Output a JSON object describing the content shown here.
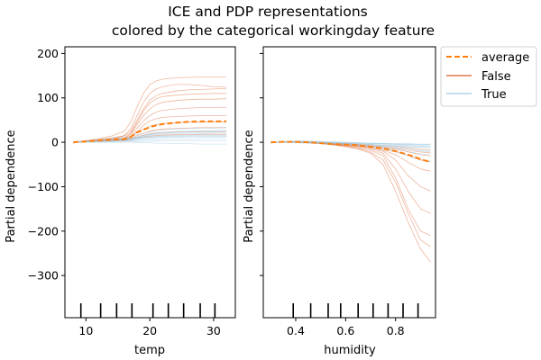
{
  "chart_data": {
    "type": "line",
    "title_line1": "ICE and PDP representations",
    "title_line2": "colored by the categorical workingday feature",
    "ylabel": "Partial dependence",
    "ylim": [
      -395,
      215
    ],
    "yticks": [
      200,
      100,
      0,
      -100,
      -200,
      -300
    ],
    "ytick_labels": [
      "200",
      "100",
      "0",
      "−100",
      "−200",
      "−300"
    ],
    "colors": {
      "average": "#ff7f0e",
      "false": "#d95f2a",
      "true": "#9ecae1"
    },
    "legend": {
      "position": "outside-right",
      "average": "average",
      "false_label": "False",
      "true_label": "True"
    },
    "panels": [
      {
        "xlabel": "temp",
        "xlim": [
          6.7,
          33.4
        ],
        "xticks": [
          10,
          20,
          30
        ],
        "xtick_labels": [
          "10",
          "20",
          "30"
        ],
        "deciles": [
          9.2,
          12.3,
          14.8,
          17.2,
          20.5,
          22.9,
          25.3,
          27.9,
          30.2
        ],
        "x": [
          8,
          10,
          12,
          14,
          16,
          17,
          18,
          19,
          20,
          21,
          22,
          24,
          26,
          28,
          30,
          32
        ],
        "average": [
          0,
          2,
          4,
          6,
          7,
          12,
          22,
          28,
          34,
          38,
          41,
          44,
          46,
          47,
          47,
          47
        ],
        "ice": [
          {
            "group": "false",
            "values": [
              0,
              3,
              6,
              9,
              14,
              24,
              50,
              75,
              95,
              105,
              110,
              115,
              118,
              119,
              120,
              121
            ]
          },
          {
            "group": "false",
            "values": [
              0,
              3,
              5,
              8,
              10,
              20,
              45,
              70,
              88,
              98,
              103,
              106,
              108,
              109,
              110,
              110
            ]
          },
          {
            "group": "false",
            "values": [
              0,
              2,
              4,
              6,
              8,
              18,
              40,
              60,
              75,
              85,
              90,
              94,
              96,
              97,
              97,
              98
            ]
          },
          {
            "group": "false",
            "values": [
              0,
              2,
              4,
              5,
              7,
              14,
              32,
              48,
              60,
              68,
              72,
              75,
              77,
              78,
              78,
              79
            ]
          },
          {
            "group": "false",
            "values": [
              0,
              2,
              3,
              5,
              7,
              10,
              25,
              38,
              48,
              53,
              56,
              58,
              59,
              60,
              60,
              60
            ]
          },
          {
            "group": "false",
            "values": [
              0,
              3,
              6,
              9,
              15,
              30,
              60,
              90,
              110,
              120,
              125,
              130,
              130,
              128,
              125,
              124
            ]
          },
          {
            "group": "false",
            "values": [
              0,
              2,
              4,
              6,
              8,
              12,
              22,
              30,
              36,
              40,
              42,
              44,
              45,
              45,
              46,
              46
            ]
          },
          {
            "group": "false",
            "values": [
              0,
              1,
              2,
              4,
              5,
              8,
              15,
              20,
              25,
              28,
              30,
              31,
              32,
              33,
              33,
              33
            ]
          },
          {
            "group": "false",
            "values": [
              0,
              1,
              2,
              3,
              4,
              5,
              9,
              12,
              14,
              15,
              16,
              17,
              17,
              18,
              18,
              18
            ]
          },
          {
            "group": "false",
            "values": [
              0,
              4,
              8,
              14,
              25,
              45,
              80,
              110,
              130,
              138,
              142,
              145,
              146,
              147,
              147,
              147
            ]
          },
          {
            "group": "false",
            "values": [
              0,
              2,
              3,
              4,
              5,
              7,
              12,
              16,
              19,
              21,
              22,
              23,
              23,
              24,
              24,
              24
            ]
          },
          {
            "group": "true",
            "values": [
              0,
              3,
              5,
              7,
              8,
              9,
              12,
              15,
              18,
              20,
              22,
              24,
              25,
              26,
              26,
              27
            ]
          },
          {
            "group": "true",
            "values": [
              0,
              2,
              4,
              6,
              7,
              8,
              10,
              13,
              15,
              17,
              18,
              19,
              20,
              20,
              21,
              21
            ]
          },
          {
            "group": "true",
            "values": [
              0,
              2,
              3,
              5,
              6,
              7,
              9,
              11,
              12,
              13,
              14,
              15,
              16,
              16,
              16,
              16
            ]
          },
          {
            "group": "true",
            "values": [
              0,
              1,
              2,
              3,
              4,
              5,
              6,
              8,
              9,
              10,
              11,
              11,
              12,
              12,
              12,
              12
            ]
          },
          {
            "group": "true",
            "values": [
              0,
              1,
              2,
              2,
              3,
              3,
              4,
              5,
              6,
              6,
              7,
              7,
              7,
              8,
              8,
              8
            ]
          },
          {
            "group": "true",
            "values": [
              0,
              1,
              1,
              1,
              2,
              2,
              2,
              2,
              3,
              3,
              3,
              3,
              3,
              3,
              3,
              3
            ]
          },
          {
            "group": "true",
            "values": [
              0,
              0,
              0,
              0,
              0,
              0,
              0,
              -1,
              -1,
              -2,
              -2,
              -3,
              -3,
              -4,
              -4,
              -4
            ]
          },
          {
            "group": "true",
            "values": [
              0,
              3,
              6,
              9,
              11,
              13,
              17,
              20,
              23,
              26,
              28,
              30,
              31,
              32,
              32,
              33
            ]
          },
          {
            "group": "true",
            "values": [
              0,
              2,
              4,
              6,
              8,
              9,
              12,
              15,
              17,
              19,
              20,
              22,
              23,
              23,
              24,
              24
            ]
          },
          {
            "group": "true",
            "values": [
              0,
              1,
              3,
              4,
              5,
              6,
              8,
              9,
              11,
              12,
              13,
              13,
              14,
              14,
              14,
              14
            ]
          }
        ]
      },
      {
        "xlabel": "humidity",
        "xlim": [
          0.27,
          0.96
        ],
        "xticks": [
          0.4,
          0.6,
          0.8
        ],
        "xtick_labels": [
          "0.4",
          "0.6",
          "0.8"
        ],
        "deciles": [
          0.39,
          0.46,
          0.53,
          0.58,
          0.65,
          0.71,
          0.77,
          0.83,
          0.89
        ],
        "x": [
          0.3,
          0.35,
          0.4,
          0.45,
          0.5,
          0.55,
          0.6,
          0.65,
          0.7,
          0.75,
          0.8,
          0.85,
          0.9,
          0.94
        ],
        "average": [
          0,
          1,
          1,
          0,
          -2,
          -4,
          -5,
          -7,
          -10,
          -14,
          -20,
          -28,
          -38,
          -45
        ],
        "ice": [
          {
            "group": "false",
            "values": [
              0,
              1,
              1,
              0,
              -2,
              -5,
              -8,
              -12,
              -18,
              -30,
              -80,
              -150,
              -200,
              -210
            ]
          },
          {
            "group": "false",
            "values": [
              0,
              1,
              0,
              -1,
              -3,
              -6,
              -10,
              -15,
              -25,
              -50,
              -110,
              -180,
              -240,
              -270
            ]
          },
          {
            "group": "false",
            "values": [
              0,
              0,
              0,
              -1,
              -2,
              -4,
              -7,
              -10,
              -15,
              -25,
              -60,
              -110,
              -150,
              -160
            ]
          },
          {
            "group": "false",
            "values": [
              0,
              1,
              1,
              0,
              -1,
              -3,
              -5,
              -8,
              -12,
              -20,
              -40,
              -75,
              -100,
              -110
            ]
          },
          {
            "group": "false",
            "values": [
              0,
              1,
              1,
              0,
              -2,
              -4,
              -6,
              -9,
              -13,
              -18,
              -28,
              -45,
              -60,
              -65
            ]
          },
          {
            "group": "false",
            "values": [
              0,
              0,
              0,
              -1,
              -2,
              -3,
              -5,
              -7,
              -10,
              -14,
              -20,
              -30,
              -40,
              -44
            ]
          },
          {
            "group": "false",
            "values": [
              0,
              1,
              1,
              1,
              0,
              -2,
              -3,
              -5,
              -8,
              -11,
              -15,
              -22,
              -28,
              -31
            ]
          },
          {
            "group": "false",
            "values": [
              0,
              0,
              0,
              -1,
              -2,
              -3,
              -4,
              -6,
              -8,
              -10,
              -13,
              -18,
              -22,
              -24
            ]
          },
          {
            "group": "false",
            "values": [
              0,
              1,
              1,
              0,
              -1,
              -2,
              -3,
              -4,
              -5,
              -7,
              -9,
              -12,
              -15,
              -17
            ]
          },
          {
            "group": "false",
            "values": [
              0,
              1,
              1,
              0,
              -2,
              -5,
              -9,
              -14,
              -22,
              -40,
              -90,
              -160,
              -220,
              -235
            ]
          },
          {
            "group": "true",
            "values": [
              0,
              1,
              1,
              0,
              -1,
              -2,
              -3,
              -4,
              -5,
              -6,
              -7,
              -8,
              -9,
              -10
            ]
          },
          {
            "group": "true",
            "values": [
              0,
              2,
              3,
              3,
              2,
              1,
              0,
              -1,
              -2,
              -3,
              -4,
              -5,
              -6,
              -6
            ]
          },
          {
            "group": "true",
            "values": [
              0,
              0,
              0,
              -1,
              -2,
              -3,
              -4,
              -6,
              -8,
              -10,
              -12,
              -15,
              -18,
              -20
            ]
          },
          {
            "group": "true",
            "values": [
              0,
              1,
              2,
              2,
              1,
              0,
              -1,
              -2,
              -3,
              -4,
              -5,
              -7,
              -9,
              -10
            ]
          },
          {
            "group": "true",
            "values": [
              0,
              1,
              1,
              0,
              -1,
              -2,
              -4,
              -6,
              -9,
              -12,
              -16,
              -21,
              -26,
              -28
            ]
          },
          {
            "group": "true",
            "values": [
              0,
              0,
              0,
              0,
              -1,
              -1,
              -2,
              -2,
              -3,
              -3,
              -4,
              -4,
              -5,
              -5
            ]
          },
          {
            "group": "true",
            "values": [
              0,
              1,
              1,
              1,
              0,
              -1,
              -2,
              -3,
              -5,
              -7,
              -10,
              -14,
              -19,
              -22
            ]
          },
          {
            "group": "true",
            "values": [
              0,
              1,
              2,
              1,
              0,
              -2,
              -4,
              -7,
              -11,
              -16,
              -22,
              -30,
              -38,
              -42
            ]
          },
          {
            "group": "true",
            "values": [
              0,
              0,
              -1,
              -2,
              -3,
              -4,
              -5,
              -6,
              -7,
              -8,
              -9,
              -10,
              -11,
              -12
            ]
          },
          {
            "group": "true",
            "values": [
              0,
              1,
              1,
              1,
              0,
              0,
              -1,
              -1,
              -2,
              -2,
              -3,
              -3,
              -4,
              -4
            ]
          }
        ]
      }
    ]
  }
}
